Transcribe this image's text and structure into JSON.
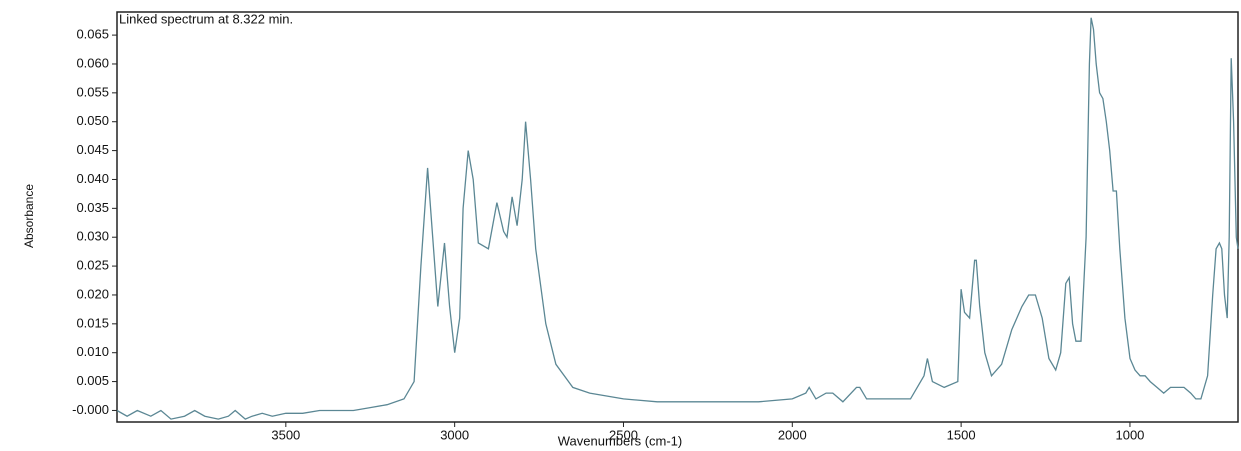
{
  "chart_data": {
    "type": "line",
    "title": "Linked spectrum at 8.322 min.",
    "x_label": "Wavenumbers (cm-1)",
    "y_label": "Absorbance",
    "xlim": [
      4000,
      680
    ],
    "ylim": [
      -0.002,
      0.069
    ],
    "xticks": [
      3500,
      3000,
      2500,
      2000,
      1500,
      1000
    ],
    "yticks": [
      {
        "value": 0,
        "label": "-0.000"
      },
      0.005,
      {
        "value": 0.01,
        "label": "0.010"
      },
      0.015,
      {
        "value": 0.02,
        "label": "0.020"
      },
      0.025,
      {
        "value": 0.03,
        "label": "0.030"
      },
      0.035,
      {
        "value": 0.04,
        "label": "0.040"
      },
      0.045,
      {
        "value": 0.05,
        "label": "0.050"
      },
      0.055,
      {
        "value": 0.06,
        "label": "0.060"
      },
      0.065
    ],
    "color": "#5b8794",
    "x": [
      4000,
      3970,
      3940,
      3900,
      3870,
      3840,
      3800,
      3770,
      3740,
      3700,
      3670,
      3650,
      3620,
      3600,
      3570,
      3540,
      3500,
      3450,
      3400,
      3350,
      3300,
      3250,
      3200,
      3150,
      3120,
      3100,
      3080,
      3065,
      3050,
      3030,
      3015,
      3000,
      2985,
      2975,
      2960,
      2945,
      2930,
      2900,
      2875,
      2855,
      2845,
      2830,
      2815,
      2800,
      2790,
      2775,
      2760,
      2730,
      2700,
      2650,
      2600,
      2500,
      2400,
      2300,
      2200,
      2100,
      2000,
      1960,
      1950,
      1930,
      1900,
      1880,
      1850,
      1810,
      1800,
      1780,
      1700,
      1650,
      1610,
      1600,
      1585,
      1550,
      1510,
      1500,
      1490,
      1475,
      1460,
      1455,
      1445,
      1430,
      1410,
      1380,
      1350,
      1320,
      1300,
      1280,
      1260,
      1240,
      1220,
      1205,
      1190,
      1180,
      1170,
      1160,
      1145,
      1130,
      1120,
      1115,
      1108,
      1100,
      1090,
      1080,
      1070,
      1060,
      1050,
      1040,
      1030,
      1015,
      1000,
      985,
      970,
      955,
      940,
      920,
      900,
      880,
      860,
      840,
      820,
      805,
      790,
      770,
      755,
      745,
      735,
      728,
      720,
      712,
      706,
      700,
      693,
      685,
      680
    ],
    "values": [
      0.0,
      -0.001,
      0.0,
      -0.001,
      0.0,
      -0.0015,
      -0.001,
      0.0,
      -0.001,
      -0.0015,
      -0.001,
      0.0,
      -0.0015,
      -0.001,
      -0.0005,
      -0.001,
      -0.0005,
      -0.0005,
      0.0,
      0.0,
      0.0,
      0.0005,
      0.001,
      0.002,
      0.005,
      0.025,
      0.042,
      0.03,
      0.018,
      0.029,
      0.018,
      0.01,
      0.016,
      0.035,
      0.045,
      0.04,
      0.029,
      0.028,
      0.036,
      0.031,
      0.03,
      0.037,
      0.032,
      0.04,
      0.05,
      0.04,
      0.028,
      0.015,
      0.008,
      0.004,
      0.003,
      0.002,
      0.0015,
      0.0015,
      0.0015,
      0.0015,
      0.002,
      0.003,
      0.004,
      0.002,
      0.003,
      0.003,
      0.0015,
      0.004,
      0.004,
      0.002,
      0.002,
      0.002,
      0.006,
      0.009,
      0.005,
      0.004,
      0.005,
      0.021,
      0.017,
      0.016,
      0.026,
      0.026,
      0.018,
      0.01,
      0.006,
      0.008,
      0.014,
      0.018,
      0.02,
      0.02,
      0.016,
      0.009,
      0.007,
      0.01,
      0.022,
      0.023,
      0.015,
      0.012,
      0.012,
      0.03,
      0.06,
      0.068,
      0.066,
      0.06,
      0.055,
      0.054,
      0.05,
      0.045,
      0.038,
      0.038,
      0.028,
      0.016,
      0.009,
      0.007,
      0.006,
      0.006,
      0.005,
      0.004,
      0.003,
      0.004,
      0.004,
      0.004,
      0.003,
      0.002,
      0.002,
      0.006,
      0.02,
      0.028,
      0.029,
      0.028,
      0.02,
      0.016,
      0.03,
      0.061,
      0.05,
      0.03,
      0.028
    ]
  }
}
